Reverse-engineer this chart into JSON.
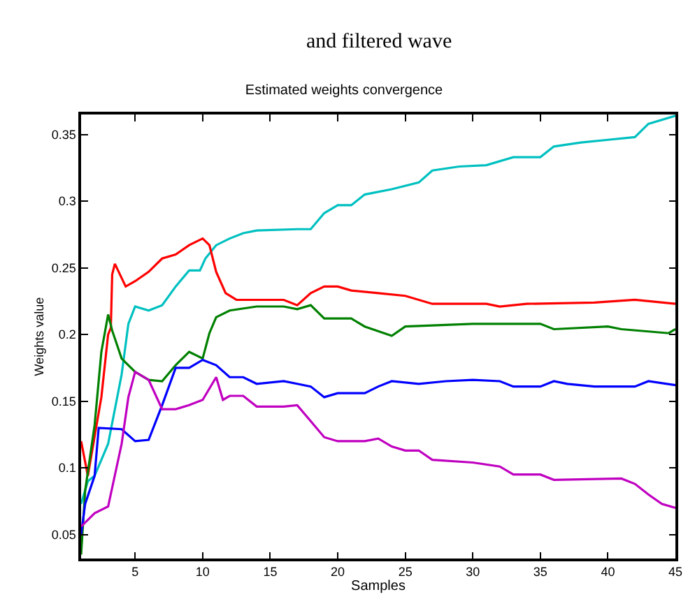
{
  "chart_data": {
    "type": "line",
    "title": "Estimated weights convergence",
    "xlabel": "Samples",
    "ylabel": "Weights value",
    "annotations": [
      "and filtered wave"
    ],
    "xlim": [
      1,
      45
    ],
    "xticks": [
      5,
      10,
      15,
      20,
      25,
      30,
      35,
      40,
      45
    ],
    "ylim": [
      0.032,
      0.365
    ],
    "yticks": [
      0.05,
      0.1,
      0.15,
      0.2,
      0.25,
      0.3,
      0.35
    ],
    "marker": "none",
    "line_style": "solid",
    "series": [
      {
        "color": "#00c0c0",
        "x": [
          1,
          1.5,
          2,
          3,
          4,
          4.5,
          5,
          6,
          7,
          8,
          9,
          9.8,
          10.2,
          11,
          12,
          13,
          14,
          17,
          18,
          19,
          20,
          21,
          22,
          24,
          26,
          27,
          29,
          31,
          33,
          35,
          36,
          38,
          40,
          42,
          43,
          45
        ],
        "values": [
          0.073,
          0.09,
          0.094,
          0.118,
          0.17,
          0.208,
          0.221,
          0.218,
          0.222,
          0.236,
          0.248,
          0.248,
          0.257,
          0.267,
          0.272,
          0.276,
          0.278,
          0.279,
          0.279,
          0.291,
          0.297,
          0.297,
          0.305,
          0.309,
          0.314,
          0.323,
          0.326,
          0.327,
          0.333,
          0.333,
          0.341,
          0.344,
          0.346,
          0.348,
          0.358,
          0.364
        ]
      },
      {
        "color": "#ff0000",
        "x": [
          1,
          1.5,
          2.5,
          3,
          3.2,
          3.3,
          3.5,
          4.3,
          5,
          6,
          7,
          8,
          9,
          10,
          10.5,
          11,
          11.7,
          12.5,
          16,
          17,
          18,
          19,
          20,
          21,
          23,
          25,
          27,
          31,
          32,
          34,
          39,
          42,
          45
        ],
        "values": [
          0.12,
          0.094,
          0.153,
          0.2,
          0.205,
          0.245,
          0.253,
          0.236,
          0.24,
          0.247,
          0.257,
          0.26,
          0.267,
          0.272,
          0.267,
          0.247,
          0.231,
          0.226,
          0.226,
          0.222,
          0.231,
          0.236,
          0.236,
          0.233,
          0.231,
          0.229,
          0.223,
          0.223,
          0.221,
          0.223,
          0.224,
          0.226,
          0.223
        ]
      },
      {
        "color": "#008000",
        "x": [
          1,
          1.3,
          2,
          2.5,
          3,
          3.3,
          4,
          5,
          6,
          7,
          8,
          9,
          10,
          10.5,
          11,
          12,
          14,
          16,
          17,
          18,
          19,
          21,
          22,
          24,
          25,
          30,
          35,
          36,
          40,
          41,
          44.5,
          45
        ],
        "values": [
          0.035,
          0.083,
          0.132,
          0.187,
          0.215,
          0.203,
          0.182,
          0.172,
          0.166,
          0.165,
          0.177,
          0.187,
          0.182,
          0.201,
          0.213,
          0.218,
          0.221,
          0.221,
          0.219,
          0.222,
          0.212,
          0.212,
          0.206,
          0.199,
          0.206,
          0.208,
          0.208,
          0.204,
          0.206,
          0.204,
          0.201,
          0.204
        ]
      },
      {
        "color": "#0000ff",
        "x": [
          1,
          1.3,
          2,
          2.3,
          4,
          5,
          6,
          7,
          8,
          9,
          10,
          11,
          12,
          13,
          14,
          16,
          17,
          18,
          19,
          20,
          22,
          23,
          24,
          26,
          28,
          30,
          32,
          33,
          35,
          36,
          37,
          39,
          42,
          43,
          45
        ],
        "values": [
          0.05,
          0.073,
          0.094,
          0.13,
          0.129,
          0.12,
          0.121,
          0.147,
          0.175,
          0.175,
          0.181,
          0.177,
          0.168,
          0.168,
          0.163,
          0.165,
          0.163,
          0.161,
          0.153,
          0.156,
          0.156,
          0.161,
          0.165,
          0.163,
          0.165,
          0.166,
          0.165,
          0.161,
          0.161,
          0.165,
          0.163,
          0.161,
          0.161,
          0.165,
          0.162
        ]
      },
      {
        "color": "#c000c0",
        "x": [
          1,
          2,
          3,
          4,
          4.5,
          5,
          6,
          7,
          8,
          9,
          10,
          11,
          11.5,
          12,
          13,
          14,
          16,
          17,
          18,
          19,
          20,
          22,
          23,
          24,
          25,
          26,
          27,
          30,
          32,
          33,
          35,
          36,
          41,
          42,
          43,
          44,
          45
        ],
        "values": [
          0.056,
          0.066,
          0.071,
          0.118,
          0.153,
          0.172,
          0.166,
          0.144,
          0.144,
          0.147,
          0.151,
          0.168,
          0.151,
          0.154,
          0.154,
          0.146,
          0.146,
          0.147,
          0.135,
          0.123,
          0.12,
          0.12,
          0.122,
          0.116,
          0.113,
          0.113,
          0.106,
          0.104,
          0.101,
          0.095,
          0.095,
          0.091,
          0.092,
          0.088,
          0.08,
          0.073,
          0.07
        ]
      }
    ]
  }
}
